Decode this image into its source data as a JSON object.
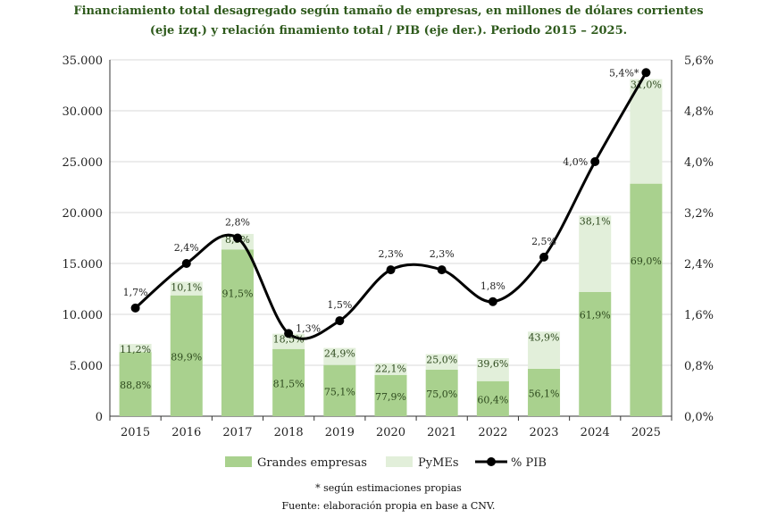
{
  "chart_data": {
    "type": "bar",
    "title_line1": "Financiamiento total desagregado según tamaño de empresas, en millones de dólares corrientes",
    "title_line2": "(eje izq.) y relación finamiento total / PIB (eje der.). Periodo 2015 – 2025.",
    "categories": [
      "2015",
      "2016",
      "2017",
      "2018",
      "2019",
      "2020",
      "2021",
      "2022",
      "2023",
      "2024",
      "2025"
    ],
    "totals": [
      7100,
      13200,
      17900,
      8100,
      6700,
      5200,
      6100,
      5700,
      8300,
      19700,
      33100
    ],
    "series": [
      {
        "name": "Grandes empresas",
        "color": "#a9d18e",
        "share_labels": [
          "88,8%",
          "89,9%",
          "91,5%",
          "81,5%",
          "75,1%",
          "77,9%",
          "75,0%",
          "60,4%",
          "56,1%",
          "61,9%",
          "69,0%"
        ],
        "shares": [
          88.8,
          89.9,
          91.5,
          81.5,
          75.1,
          77.9,
          75.0,
          60.4,
          56.1,
          61.9,
          69.0
        ]
      },
      {
        "name": "PyMEs",
        "color": "#e2efda",
        "share_labels": [
          "11,2%",
          "10,1%",
          "8,5%",
          "18,5%",
          "24,9%",
          "22,1%",
          "25,0%",
          "39,6%",
          "43,9%",
          "38,1%",
          "31,0%"
        ],
        "shares": [
          11.2,
          10.1,
          8.5,
          18.5,
          24.9,
          22.1,
          25.0,
          39.6,
          43.9,
          38.1,
          31.0
        ]
      },
      {
        "name": "% PIB",
        "color": "#000000",
        "axis": "right",
        "values": [
          1.7,
          2.4,
          2.8,
          1.3,
          1.5,
          2.3,
          2.3,
          1.8,
          2.5,
          4.0,
          5.4
        ],
        "labels": [
          "1,7%",
          "2,4%",
          "2,8%",
          "1,3%",
          "1,5%",
          "2,3%",
          "2,3%",
          "1,8%",
          "2,5%",
          "4,0%",
          "5,4%*"
        ]
      }
    ],
    "ylim": [
      0,
      35000
    ],
    "yticks": [
      "0",
      "5.000",
      "10.000",
      "15.000",
      "20.000",
      "25.000",
      "30.000",
      "35.000"
    ],
    "y2lim": [
      0,
      5.6
    ],
    "y2ticks": [
      "0,0%",
      "0,8%",
      "1,6%",
      "2,4%",
      "3,2%",
      "4,0%",
      "4,8%",
      "5,6%"
    ],
    "grid": true,
    "legend_position": "bottom"
  },
  "notes": {
    "estimate": "* según estimaciones propias",
    "source": "Fuente: elaboración propia en base a CNV."
  }
}
